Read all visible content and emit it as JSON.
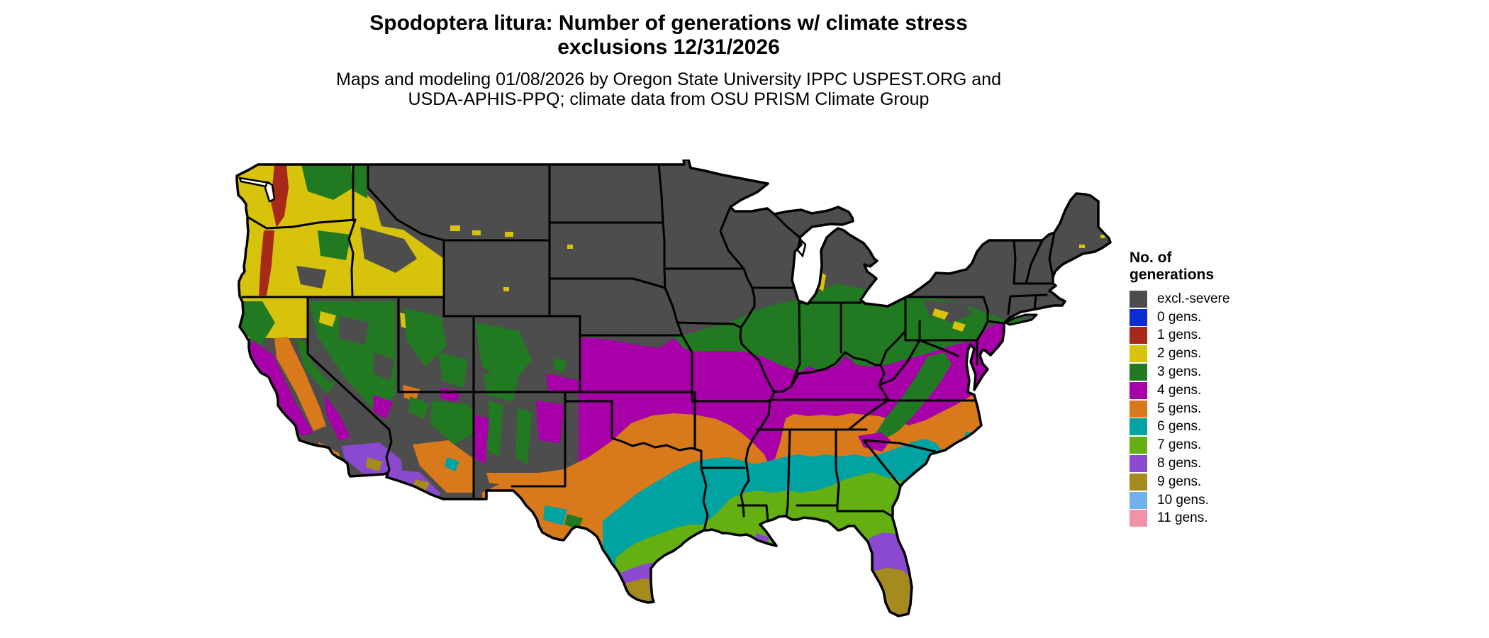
{
  "header": {
    "title_line1": "Spodoptera litura: Number of generations w/ climate stress",
    "title_line2": "exclusions 12/31/2026",
    "subtitle_line1": "Maps and modeling 01/08/2026 by Oregon State University IPPC USPEST.ORG and",
    "subtitle_line2": "USDA-APHIS-PPQ; climate data from OSU PRISM Climate Group"
  },
  "legend": {
    "title_line1": "No. of",
    "title_line2": "generations",
    "items": [
      {
        "key": "excl",
        "label": "excl.-severe",
        "color": "#4d4d4d"
      },
      {
        "key": "g0",
        "label": "0 gens.",
        "color": "#0a2dd2"
      },
      {
        "key": "g1",
        "label": "1 gens.",
        "color": "#a62a17"
      },
      {
        "key": "g2",
        "label": "2 gens.",
        "color": "#d8c30c"
      },
      {
        "key": "g3",
        "label": "3 gens.",
        "color": "#217a21"
      },
      {
        "key": "g4",
        "label": "4 gens.",
        "color": "#a800a8"
      },
      {
        "key": "g5",
        "label": "5 gens.",
        "color": "#d8791b"
      },
      {
        "key": "g6",
        "label": "6 gens.",
        "color": "#00a2a2"
      },
      {
        "key": "g7",
        "label": "7 gens.",
        "color": "#64b013"
      },
      {
        "key": "g8",
        "label": "8 gens.",
        "color": "#8a49cf"
      },
      {
        "key": "g9",
        "label": "9 gens.",
        "color": "#a58a1e"
      },
      {
        "key": "g10",
        "label": "10 gens.",
        "color": "#72b2ec"
      },
      {
        "key": "g11",
        "label": "11 gens.",
        "color": "#f093a7"
      }
    ]
  },
  "palette": {
    "excl": "#4d4d4d",
    "g0": "#0a2dd2",
    "g1": "#a62a17",
    "g2": "#d8c30c",
    "g3": "#217a21",
    "g4": "#a800a8",
    "g5": "#d8791b",
    "g6": "#00a2a2",
    "g7": "#64b013",
    "g8": "#8a49cf",
    "g9": "#a58a1e",
    "g10": "#72b2ec",
    "g11": "#f093a7"
  },
  "map": {
    "water_color": "#ffffff",
    "border_color": "#000000",
    "region": "Continental United States",
    "band_order_north_to_south": [
      "excl.-severe",
      "3 gens.",
      "4 gens.",
      "5 gens.",
      "6 gens.",
      "7 gens.",
      "8 gens.",
      "9 gens.",
      "10 gens."
    ]
  }
}
